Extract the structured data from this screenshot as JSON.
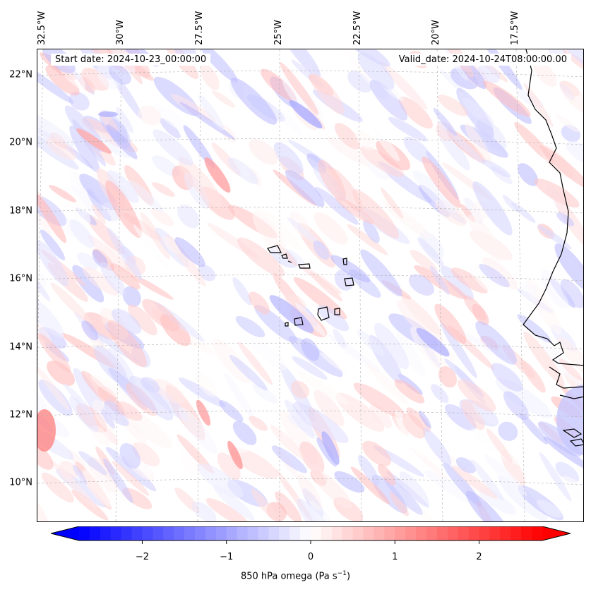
{
  "map": {
    "start_date": "Start date: 2024-10-23_00:00:00",
    "valid_date": "Valid_date: 2024-10-24T08:00:00.00",
    "lon_labels": [
      "32.5°W",
      "30°W",
      "27.5°W",
      "25°W",
      "22.5°W",
      "20°W",
      "17.5°W"
    ],
    "lat_labels": [
      "22°N",
      "20°N",
      "18°N",
      "16°N",
      "14°N",
      "12°N",
      "10°N"
    ],
    "variable": "850 hPa omega",
    "coastline_color": "#000000",
    "gridline_color": "#b0b0b0"
  },
  "colorbar": {
    "title_prefix": "850 hPa omega (Pa s",
    "title_exp": "−1",
    "title_suffix": ")",
    "colormap": "bwr",
    "min": -2.75,
    "max": 2.75,
    "extend": "both",
    "ticks": [
      "−2",
      "−1",
      "0",
      "1",
      "2"
    ],
    "tick_values": [
      -2,
      -1,
      0,
      1,
      2
    ],
    "low_color": "#0000ff",
    "mid_color": "#ffffff",
    "high_color": "#ff0000"
  }
}
